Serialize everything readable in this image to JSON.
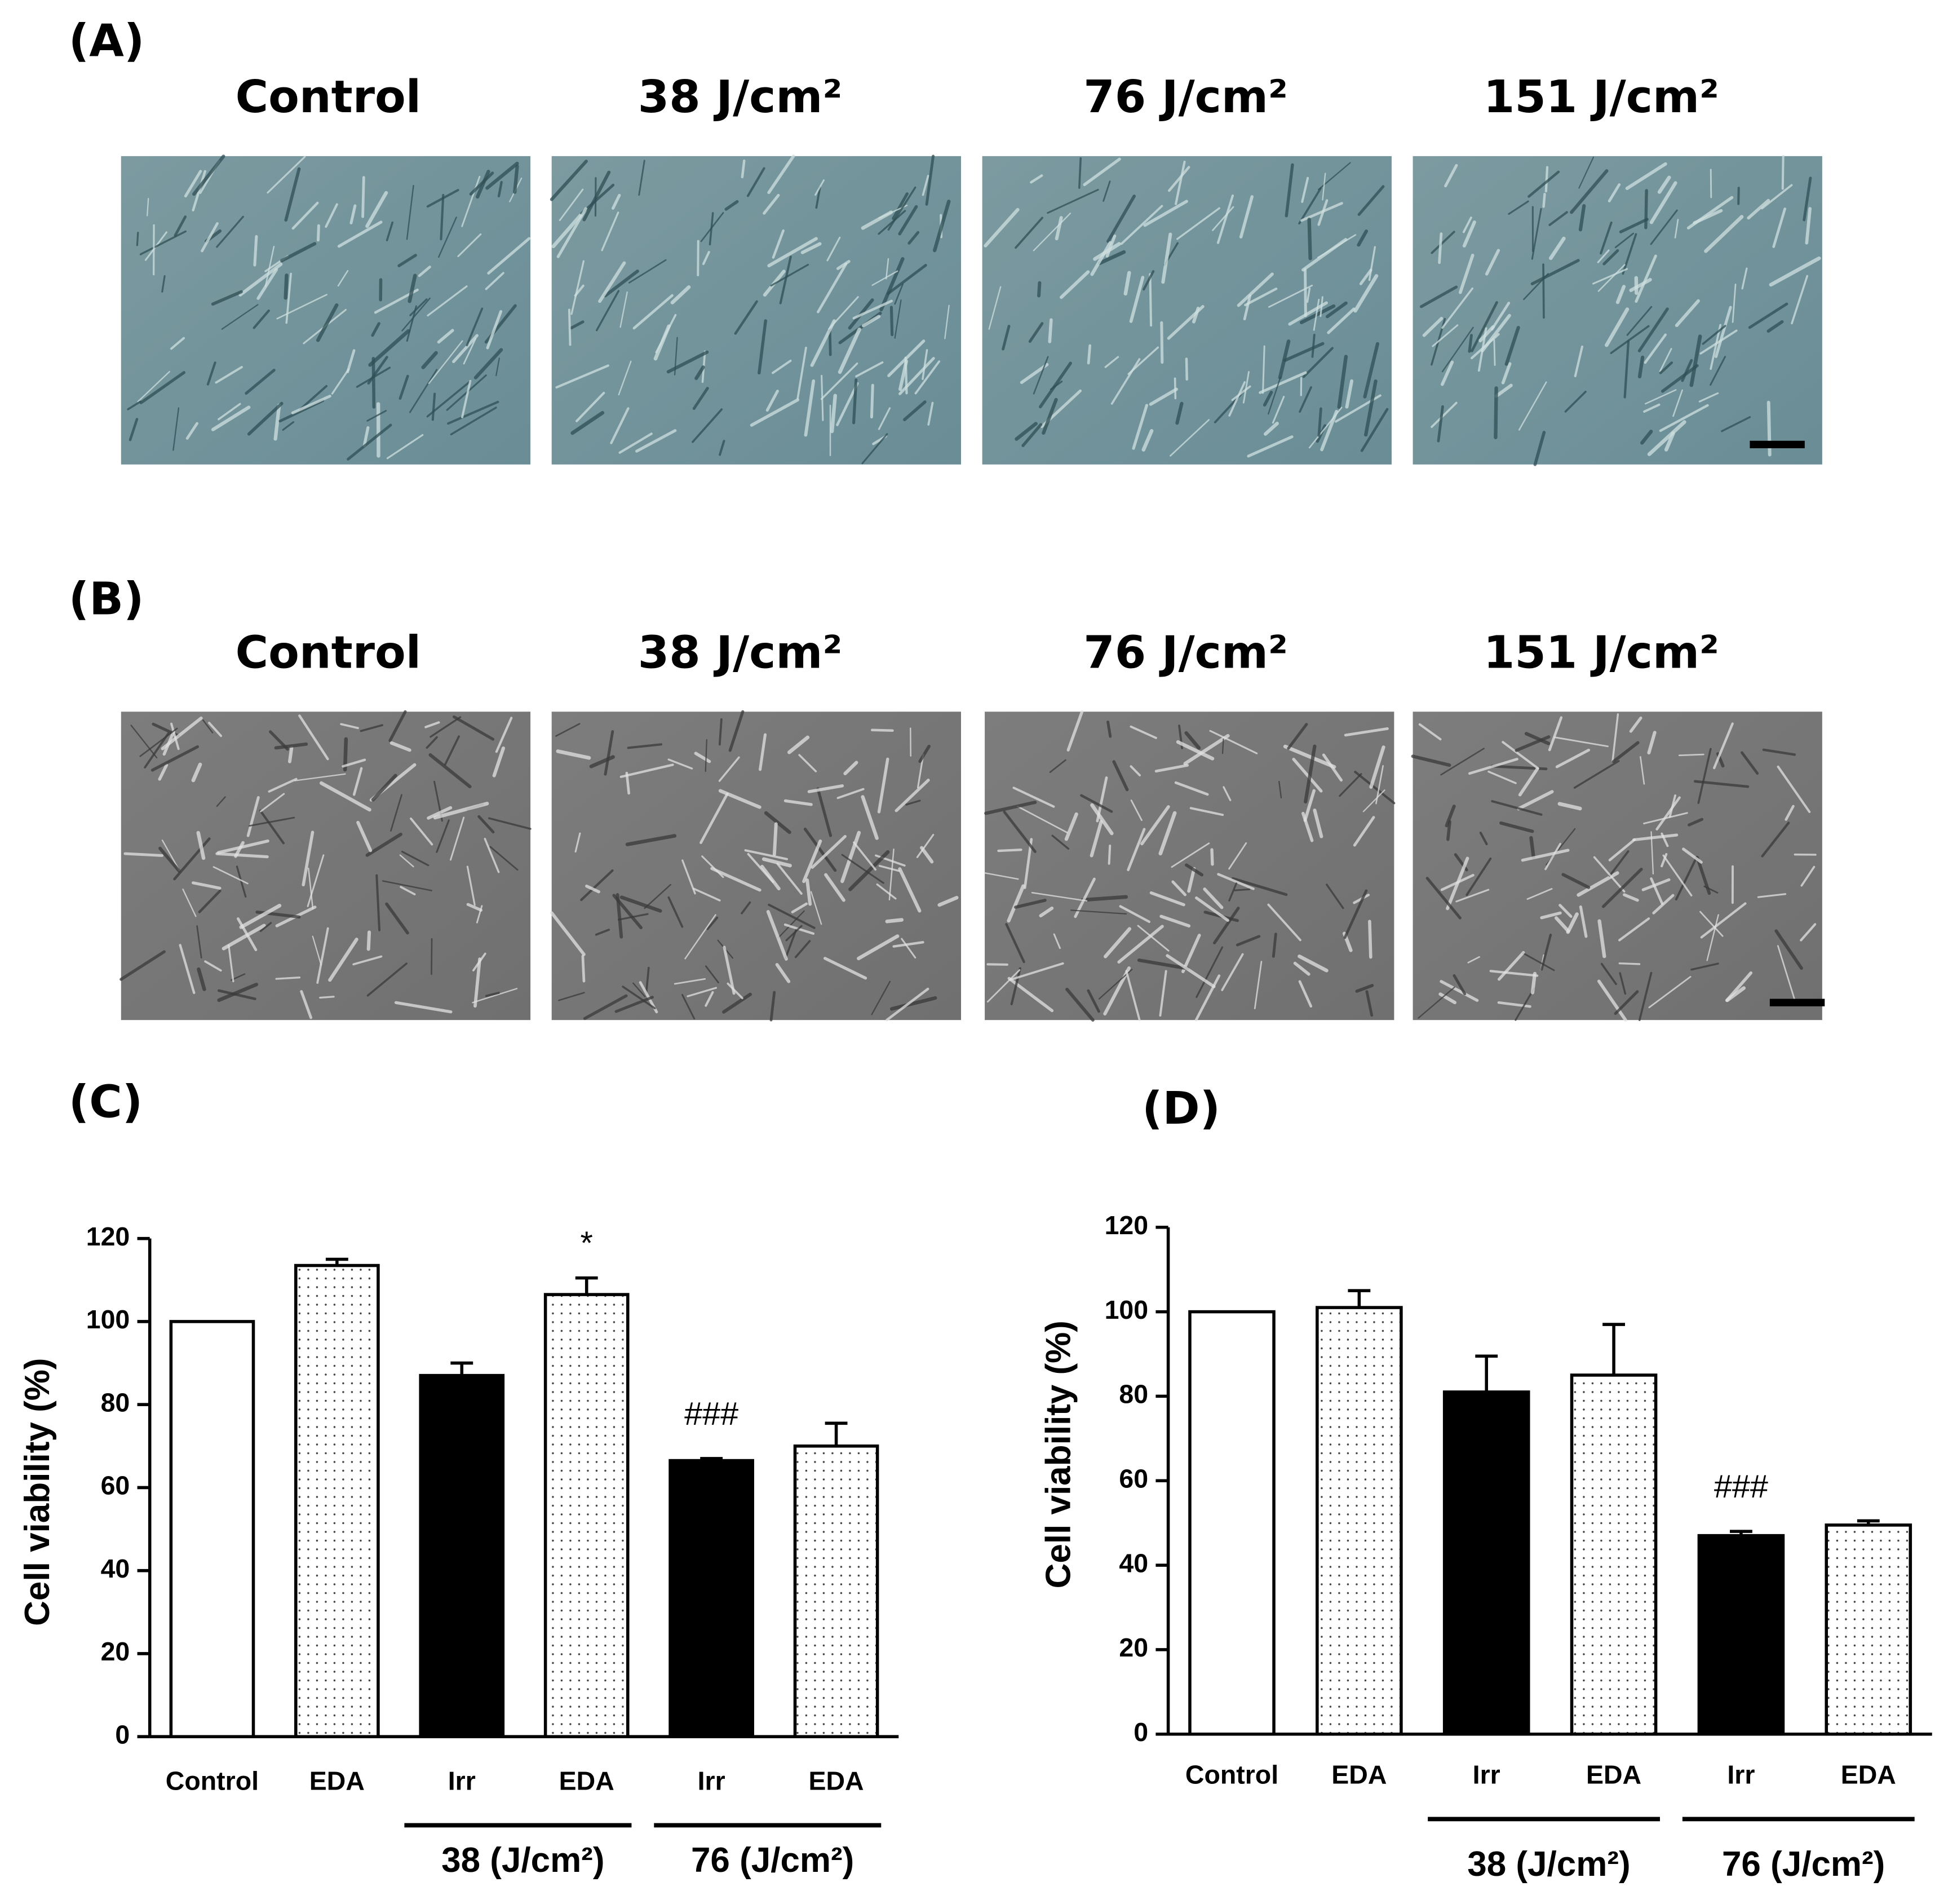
{
  "panels": [
    {
      "label": "(A)",
      "captions": [
        "Control",
        "38 J/cm²",
        "76 J/cm²",
        "151 J/cm²"
      ]
    },
    {
      "label": "(B)",
      "captions": [
        "Control",
        "38 J/cm²",
        "76 J/cm²",
        "151 J/cm²"
      ]
    }
  ],
  "chart_data": [
    {
      "type": "bar",
      "panel_label": "(C)",
      "ylabel": "Cell viability (%)",
      "categories": [
        "Control",
        "EDA",
        "Irr",
        "EDA",
        "Irr",
        "EDA"
      ],
      "values": [
        100,
        113.5,
        87,
        106.5,
        66.5,
        70
      ],
      "errors": [
        null,
        1.5,
        3,
        4,
        0.5,
        5.5
      ],
      "fills": [
        "white",
        "dots",
        "black",
        "dots",
        "black",
        "dots"
      ],
      "ylim": [
        0,
        120
      ],
      "yticks": [
        0,
        20,
        40,
        60,
        80,
        100,
        120
      ],
      "groups": [
        {
          "label": "38 (J/cm²)",
          "categories": [
            2,
            3
          ]
        },
        {
          "label": "76 (J/cm²)",
          "categories": [
            4,
            5
          ]
        }
      ],
      "annotations": [
        {
          "text": "*",
          "bar": 3
        },
        {
          "text": "###",
          "bar": 4
        }
      ]
    },
    {
      "type": "bar",
      "panel_label": "(D)",
      "ylabel": "Cell viability (%)",
      "categories": [
        "Control",
        "EDA",
        "Irr",
        "EDA",
        "Irr",
        "EDA"
      ],
      "values": [
        100,
        101,
        81,
        85,
        47,
        49.5
      ],
      "errors": [
        null,
        4,
        8.5,
        12,
        1,
        1
      ],
      "fills": [
        "white",
        "dots",
        "black",
        "dots",
        "black",
        "dots"
      ],
      "ylim": [
        0,
        120
      ],
      "yticks": [
        0,
        20,
        40,
        60,
        80,
        100,
        120
      ],
      "groups": [
        {
          "label": "38 (J/cm²)",
          "categories": [
            2,
            3
          ]
        },
        {
          "label": "76 (J/cm²)",
          "categories": [
            4,
            5
          ]
        }
      ],
      "annotations": [
        {
          "text": "###",
          "bar": 4
        }
      ]
    }
  ]
}
